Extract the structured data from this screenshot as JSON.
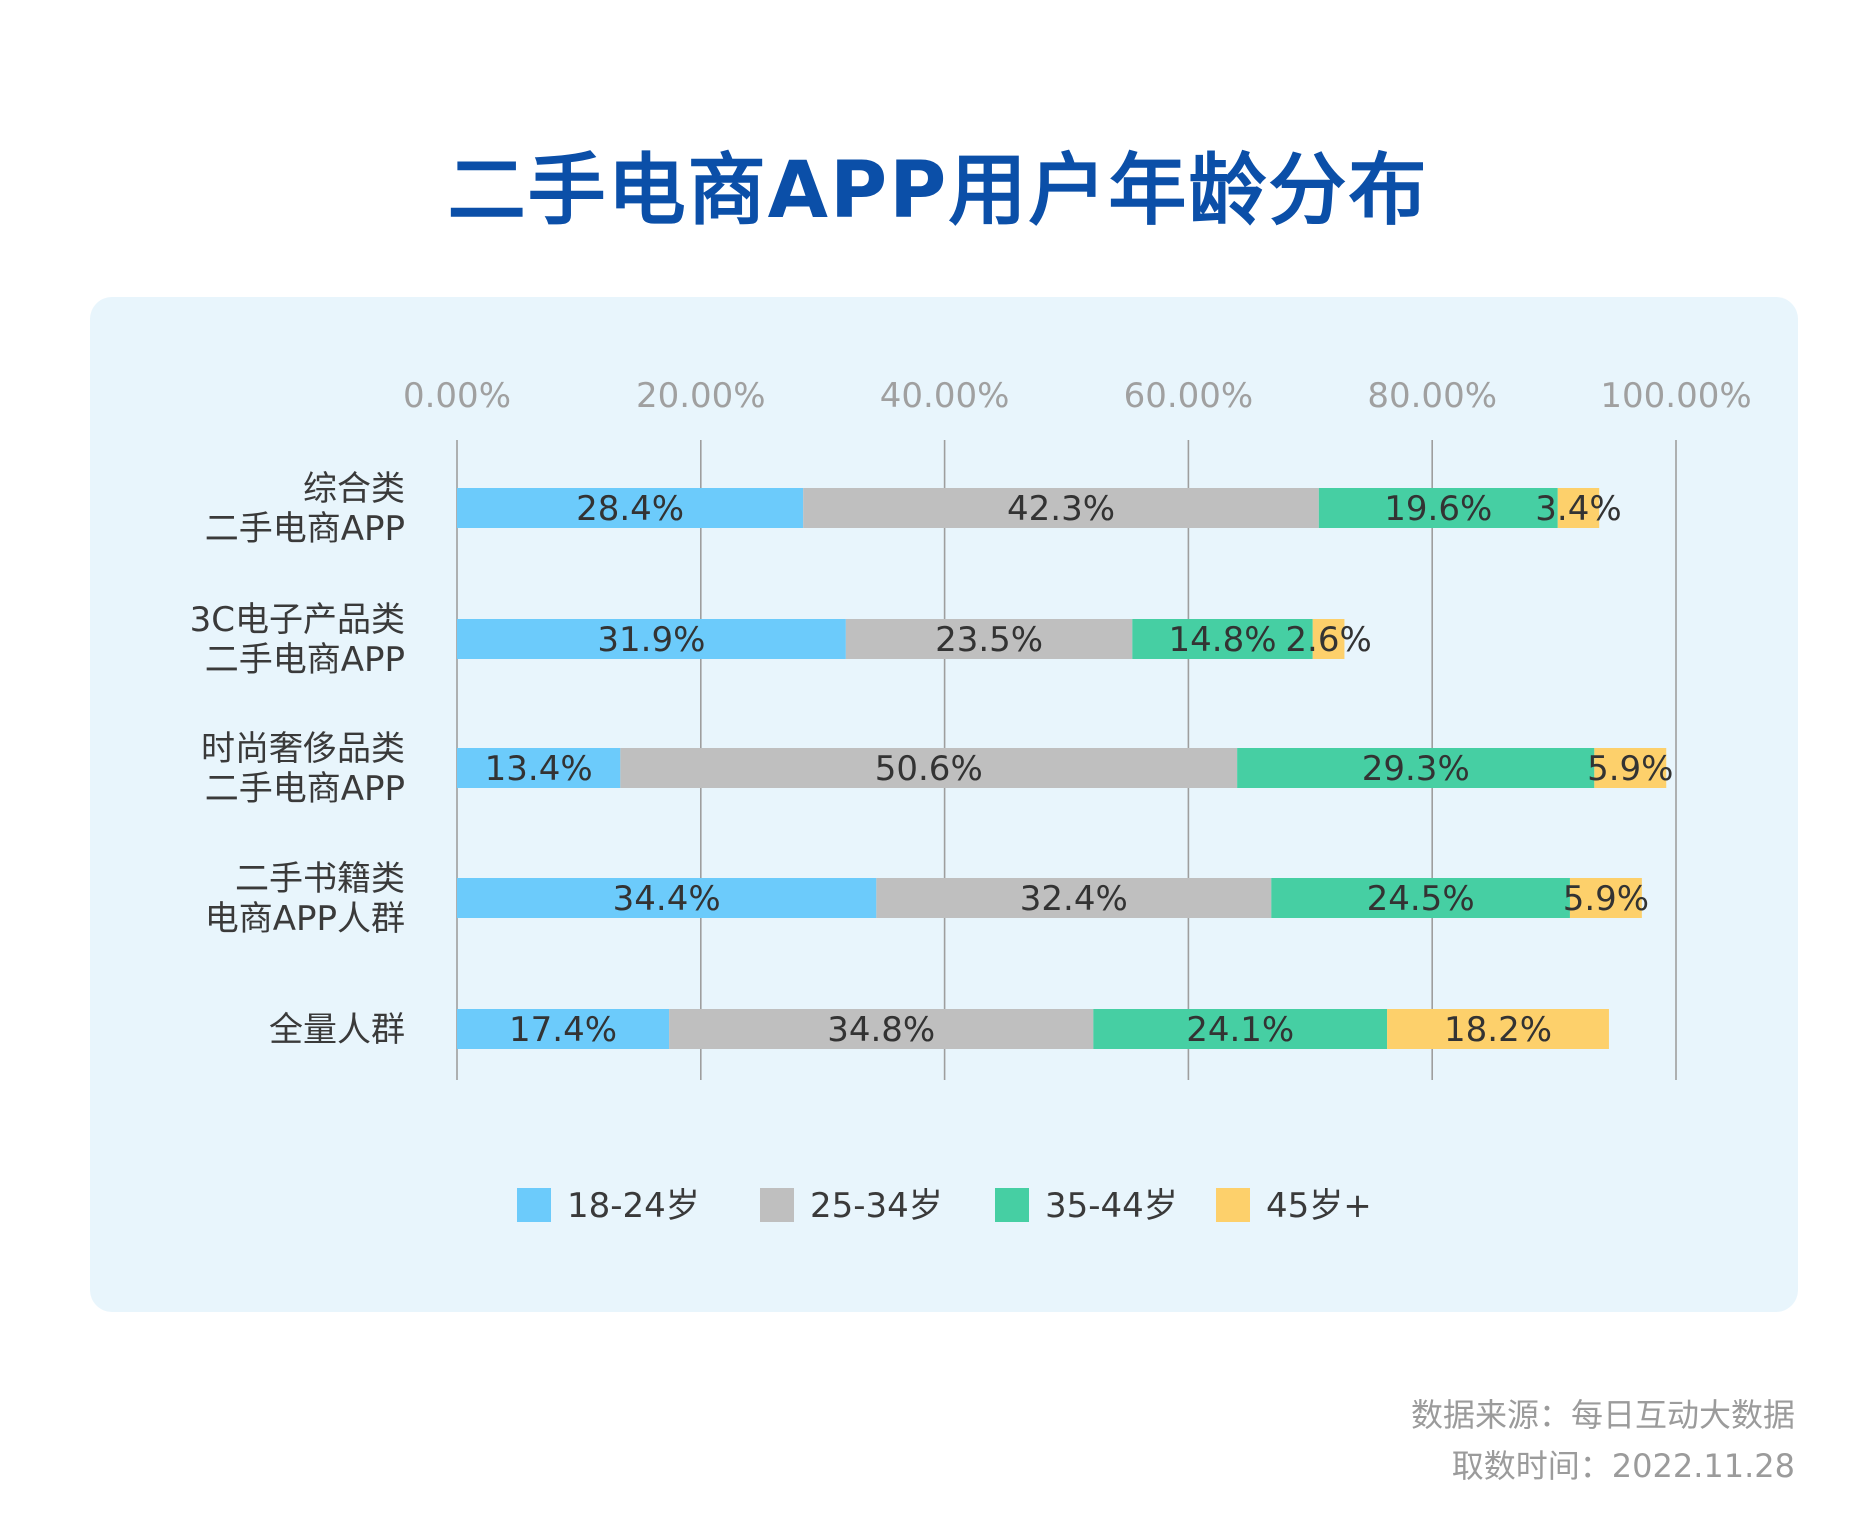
{
  "footer": {
    "source": "数据来源：每日互动大数据",
    "date": "取数时间：2022.11.28"
  },
  "colors": {
    "title": "#0b4fa8",
    "panel_bg": "#e8f5fc",
    "axis_text": "#a0a0a0",
    "gridline": "#9e9e9e",
    "category_text": "#3a3a3a",
    "bar_label_text": "#333333",
    "series_18_24": "#6ccbfb",
    "series_25_34": "#bfbfbf",
    "series_35_44": "#46cfa3",
    "series_45_plus": "#fdd06b"
  },
  "chart_data": {
    "type": "bar",
    "orientation": "horizontal",
    "stacked": true,
    "title": "二手电商APP用户年龄分布",
    "categories": [
      [
        "综合类",
        "二手电商APP"
      ],
      [
        "3C电子产品类",
        "二手电商APP"
      ],
      [
        "时尚奢侈品类",
        "二手电商APP"
      ],
      [
        "二手书籍类",
        "电商APP人群"
      ],
      [
        "全量人群"
      ]
    ],
    "series": [
      {
        "name": "18-24岁",
        "color": "#6ccbfb",
        "values": [
          28.4,
          31.9,
          13.4,
          34.4,
          17.4
        ],
        "labels": [
          "28.4%",
          "31.9%",
          "13.4%",
          "34.4%",
          "17.4%"
        ]
      },
      {
        "name": "25-34岁",
        "color": "#bfbfbf",
        "values": [
          42.3,
          23.5,
          50.6,
          32.4,
          34.8
        ],
        "labels": [
          "42.3%",
          "23.5%",
          "50.6%",
          "32.4%",
          "34.8%"
        ]
      },
      {
        "name": "35-44岁",
        "color": "#46cfa3",
        "values": [
          19.6,
          14.8,
          29.3,
          24.5,
          24.1
        ],
        "labels": [
          "19.6%",
          "14.8%",
          "29.3%",
          "24.5%",
          "24.1%"
        ]
      },
      {
        "name": "45岁+",
        "color": "#fdd06b",
        "values": [
          3.4,
          2.6,
          5.9,
          5.9,
          18.2
        ],
        "labels": [
          "3.4%",
          "2.6%",
          "5.9%",
          "5.9%",
          "18.2%"
        ]
      }
    ],
    "x_ticks": [
      "0.00%",
      "20.00%",
      "40.00%",
      "60.00%",
      "80.00%",
      "100.00%"
    ],
    "x_tick_values": [
      0,
      20,
      40,
      60,
      80,
      100
    ],
    "xlim": [
      0,
      100
    ],
    "xlabel": "",
    "ylabel": "",
    "x_axis_position": "top",
    "grid": true,
    "legend_position": "bottom"
  }
}
